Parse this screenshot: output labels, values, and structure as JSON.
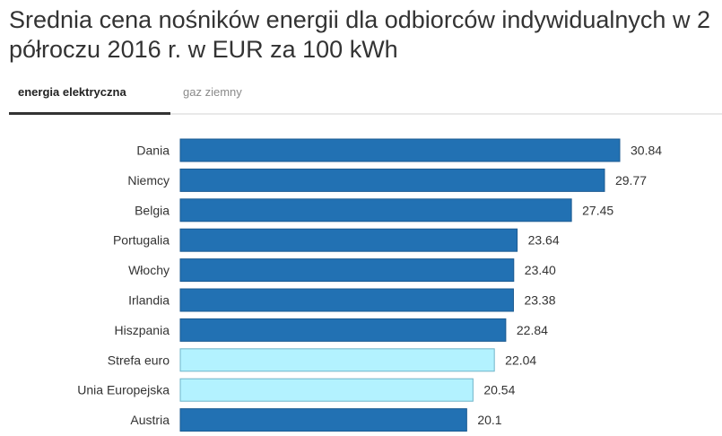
{
  "title": "Srednia cena nośników energii dla odbiorców indywidualnych w 2 półroczu 2016 r. w EUR za 100 kWh",
  "tabs": [
    {
      "label": "energia elektryczna",
      "active": true
    },
    {
      "label": "gaz ziemny",
      "active": false
    }
  ],
  "colors": {
    "primary_bar": "#2271b3",
    "highlight_bar": "#b3f2ff",
    "bar_border": "#1b5a91",
    "highlight_border": "#6fb4c9"
  },
  "chart_data": {
    "type": "bar",
    "orientation": "horizontal",
    "title": "Srednia cena nośników energii dla odbiorców indywidualnych w 2 półroczu 2016 r. w EUR za 100 kWh",
    "categories": [
      "Dania",
      "Niemcy",
      "Belgia",
      "Portugalia",
      "Włochy",
      "Irlandia",
      "Hiszpania",
      "Strefa euro",
      "Unia Europejska",
      "Austria"
    ],
    "values": [
      30.84,
      29.77,
      27.45,
      23.64,
      23.4,
      23.38,
      22.84,
      22.04,
      20.54,
      20.1
    ],
    "value_labels": [
      "30.84",
      "29.77",
      "27.45",
      "23.64",
      "23.40",
      "23.38",
      "22.84",
      "22.04",
      "20.54",
      "20.1"
    ],
    "highlighted": [
      "Strefa euro",
      "Unia Europejska"
    ],
    "xlim": [
      0,
      30.84
    ],
    "grid": false,
    "legend": "none"
  }
}
